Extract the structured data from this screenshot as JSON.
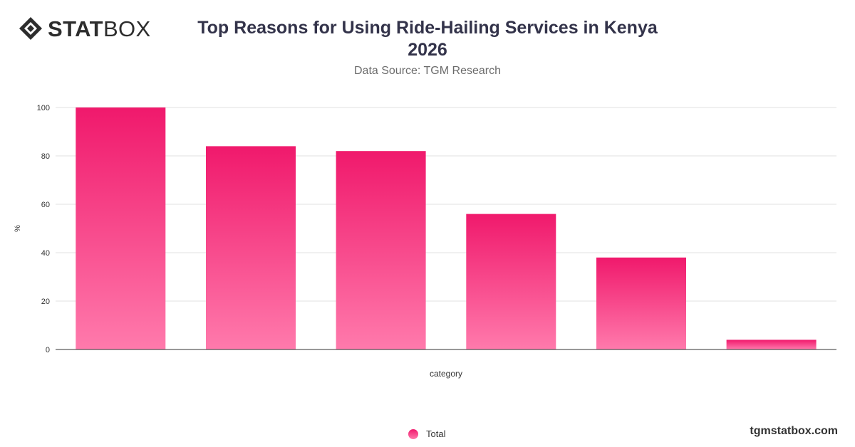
{
  "logo": {
    "text_strong": "STAT",
    "text_light": "BOX",
    "icon": "diamond-logo-icon"
  },
  "header": {
    "title_line1": "Top Reasons for Using Ride-Hailing Services in Kenya",
    "title_line2": "2026",
    "subtitle": "Data Source: TGM Research"
  },
  "legend": {
    "label": "Total",
    "icon": "legend-circle-icon"
  },
  "watermark": "tgmstatbox.com",
  "colors": {
    "bar_top": "#f0196c",
    "bar_bottom": "#ff7aac",
    "grid": "#e2e2e2",
    "axis": "#333333"
  },
  "chart_data": {
    "type": "bar",
    "title": "Top Reasons for Using Ride-Hailing Services in Kenya 2026",
    "subtitle": "Data Source: TGM Research",
    "xlabel": "category",
    "ylabel": "%",
    "ylim": [
      0,
      100
    ],
    "yticks": [
      0,
      20,
      40,
      60,
      80,
      100
    ],
    "grid": true,
    "legend_position": "bottom-center",
    "categories": [
      "",
      "",
      "",
      "",
      "",
      ""
    ],
    "series": [
      {
        "name": "Total",
        "values": [
          100,
          84,
          82,
          56,
          38,
          4
        ]
      }
    ]
  }
}
